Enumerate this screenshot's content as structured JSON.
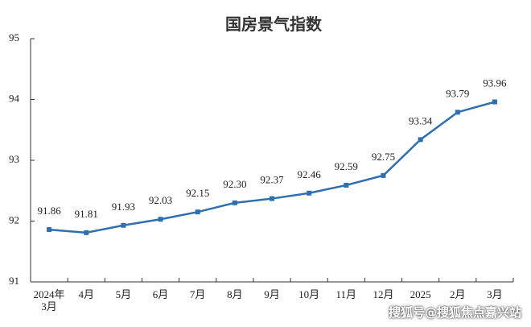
{
  "chart_data": {
    "type": "line",
    "title": "国房景气指数",
    "watermark": "搜狐号@搜狐焦点嘉兴站",
    "categories": [
      "2024年3月",
      "4月",
      "5月",
      "6月",
      "7月",
      "8月",
      "9月",
      "10月",
      "11月",
      "12月",
      "2025",
      "2月",
      "3月"
    ],
    "series": [
      {
        "name": "国房景气指数",
        "color": "#2e6fb0",
        "values": [
          91.86,
          91.81,
          91.93,
          92.03,
          92.15,
          92.3,
          92.37,
          92.46,
          92.59,
          92.75,
          93.34,
          93.79,
          93.96
        ],
        "value_labels": [
          "91.86",
          "91.81",
          "91.93",
          "92.03",
          "92.15",
          "92.30",
          "92.37",
          "92.46",
          "92.59",
          "92.75",
          "93.34",
          "93.79",
          "93.96"
        ]
      }
    ],
    "ylim": [
      91,
      95
    ],
    "yticks": [
      91,
      92,
      93,
      94,
      95
    ],
    "grid": false
  }
}
